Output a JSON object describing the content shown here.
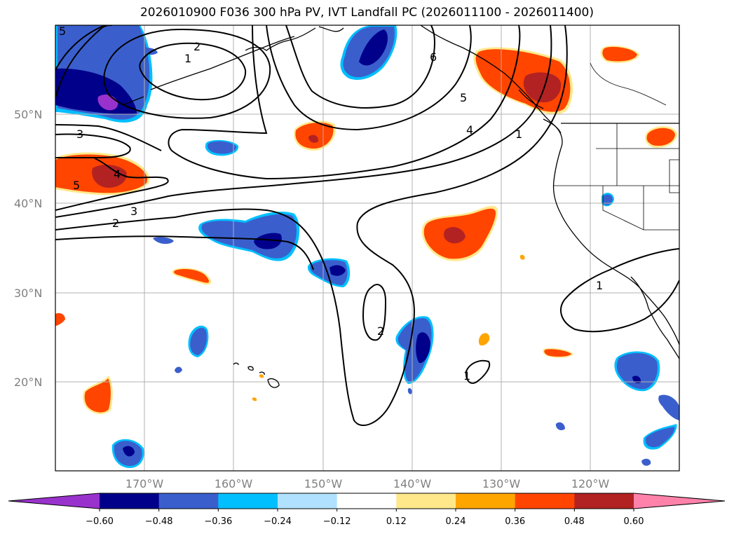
{
  "title": "2026010900 F036 300 hPa PV, IVT Landfall PC (2026011100 - 2026011400)",
  "map": {
    "lat_labels": [
      "50°N",
      "40°N",
      "30°N",
      "20°N"
    ],
    "lon_labels": [
      "170°W",
      "160°W",
      "150°W",
      "140°W",
      "130°W",
      "120°W"
    ],
    "contour_labels": [
      "5",
      "2",
      "1",
      "6",
      "5",
      "4",
      "1",
      "3",
      "4",
      "5",
      "3",
      "2",
      "2",
      "1",
      "1"
    ]
  },
  "colorbar": {
    "ticks": [
      "−0.60",
      "−0.48",
      "−0.36",
      "−0.24",
      "−0.12",
      "0.12",
      "0.24",
      "0.36",
      "0.48",
      "0.60"
    ],
    "colors": [
      "#9932cc",
      "#00008b",
      "#3a5fcd",
      "#00bfff",
      "#b0e2ff",
      "#ffffff",
      "#ffe88a",
      "#ffa500",
      "#ff4500",
      "#b22222",
      "#ff82ab"
    ]
  },
  "colors": {
    "grid": "#b0b0b0",
    "contour": "#000000",
    "label": "#808080"
  }
}
